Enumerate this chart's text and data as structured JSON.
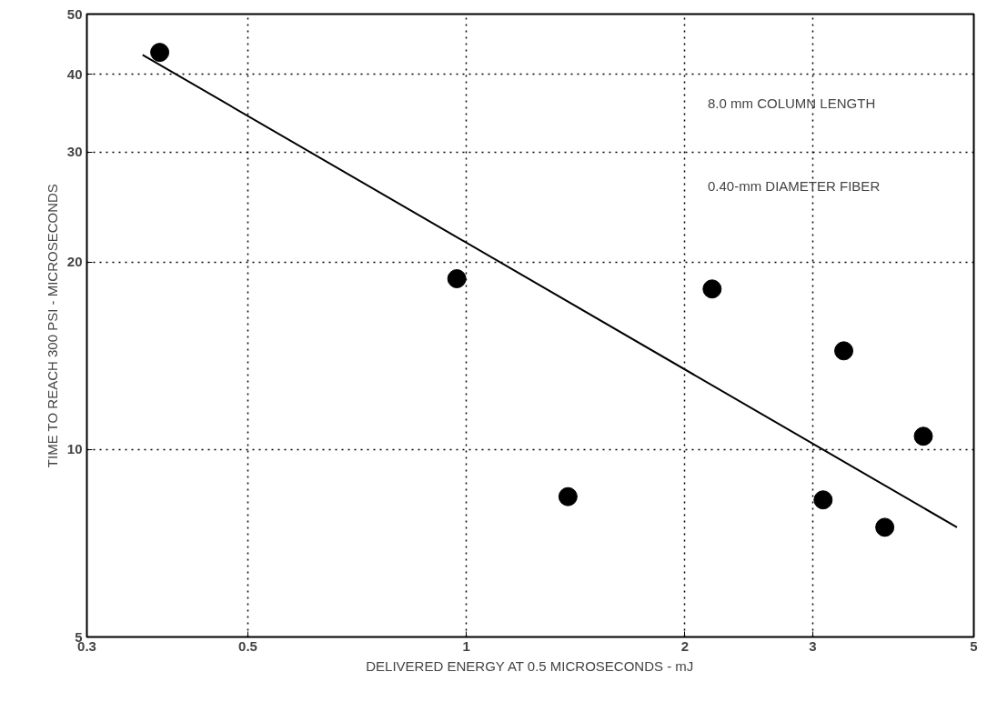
{
  "chart_data": {
    "type": "scatter",
    "xlabel": "DELIVERED ENERGY AT 0.5 MICROSECONDS - mJ",
    "ylabel": "TIME TO REACH 300 PSI - MICROSECONDS",
    "log": "xy",
    "xlim": [
      0.3,
      5
    ],
    "ylim": [
      5,
      50
    ],
    "xticks": [
      0.3,
      0.5,
      1,
      2,
      3,
      5
    ],
    "yticks": [
      5,
      10,
      20,
      30,
      40,
      50
    ],
    "grid": true,
    "annotations": [
      "8.0 mm COLUMN LENGTH",
      "0.40-mm DIAMETER FIBER"
    ],
    "series": [
      {
        "color": "#000000",
        "marker": "circle",
        "x": [
          0.378,
          0.97,
          1.38,
          2.18,
          3.1,
          3.31,
          3.77,
          4.26
        ],
        "values": [
          43.4,
          18.8,
          8.4,
          18.1,
          8.3,
          14.4,
          7.5,
          10.5
        ]
      },
      {
        "type": "line",
        "color": "#000000",
        "marker": "none",
        "line_style": "solid",
        "x": [
          0.358,
          4.74
        ],
        "values": [
          43.0,
          7.5
        ]
      }
    ]
  }
}
